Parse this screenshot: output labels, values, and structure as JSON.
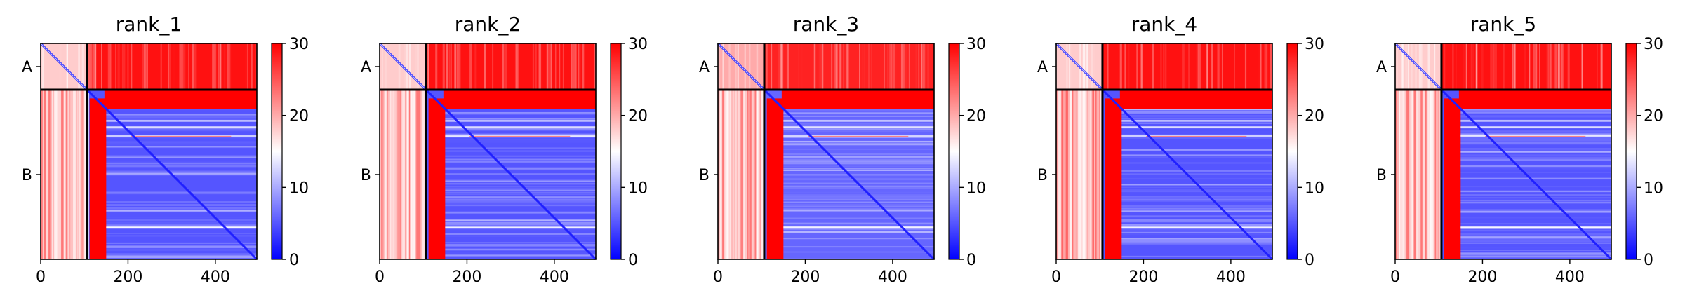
{
  "figure": {
    "panel_titles": [
      "rank_1",
      "rank_2",
      "rank_3",
      "rank_4",
      "rank_5"
    ]
  },
  "chart_data": {
    "type": "heatmap",
    "description_of_panels": "Five predicted aligned error (PAE) heatmaps of a two-chain complex",
    "x_range": [
      0,
      495
    ],
    "y_range": [
      495,
      0
    ],
    "x_ticks": [
      0,
      200,
      400
    ],
    "chains": [
      {
        "label": "A",
        "start": 0,
        "end": 106
      },
      {
        "label": "B",
        "start": 106,
        "end": 495
      }
    ],
    "colorbar": {
      "ticks": [
        0,
        10,
        20,
        30
      ],
      "range": [
        0,
        30
      ],
      "colors": {
        "low": "#0000ff",
        "mid": "#ffffff",
        "high": "#ff0000"
      }
    },
    "colors": {
      "chain_divider": "#000000",
      "high_error": "#ff0000",
      "low_error": "#2a3cff"
    },
    "series": [
      {
        "name": "rank_1",
        "AA": 18,
        "AB": 29,
        "BA": 23,
        "BB": 5
      },
      {
        "name": "rank_2",
        "AA": 18,
        "AB": 29,
        "BA": 23,
        "BB": 5
      },
      {
        "name": "rank_3",
        "AA": 20,
        "AB": 28,
        "BA": 23,
        "BB": 6
      },
      {
        "name": "rank_4",
        "AA": 18,
        "AB": 29,
        "BA": 24,
        "BB": 5
      },
      {
        "name": "rank_5",
        "AA": 18,
        "AB": 29,
        "BA": 23,
        "BB": 5
      }
    ]
  }
}
